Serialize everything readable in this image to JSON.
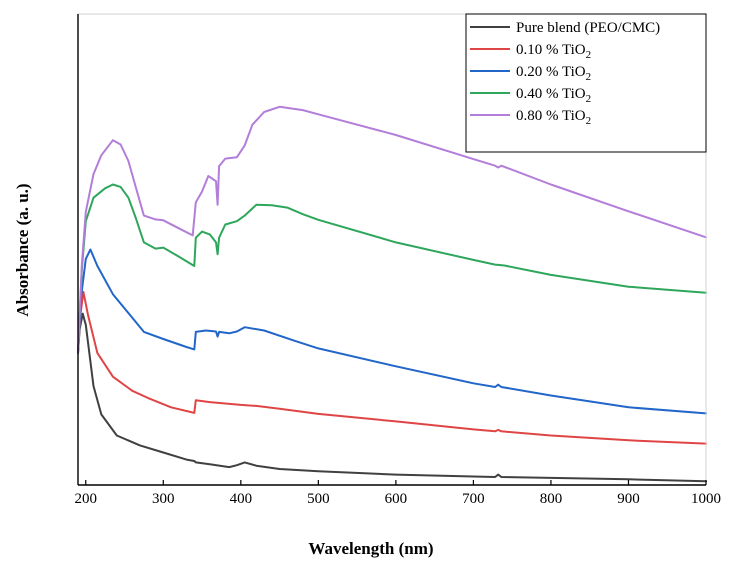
{
  "chart_data": {
    "type": "line",
    "title": "",
    "xlabel": "Wavelength (nm)",
    "ylabel": "Absorbance (a. u.)",
    "xlim": [
      190,
      1000
    ],
    "ylim": [
      0,
      100
    ],
    "x_ticks": [
      200,
      300,
      400,
      500,
      600,
      700,
      800,
      900,
      1000
    ],
    "y_tick_labels_shown": false,
    "grid": false,
    "legend_position": "top-right",
    "series": [
      {
        "name": "Pure blend (PEO/CMC)",
        "legend_label": "Pure blend (PEO/CMC)",
        "color": "#404040",
        "points": [
          [
            190,
            28
          ],
          [
            192,
            33
          ],
          [
            196,
            36.4
          ],
          [
            200,
            34
          ],
          [
            210,
            21
          ],
          [
            220,
            15
          ],
          [
            240,
            10.5
          ],
          [
            270,
            8.4
          ],
          [
            300,
            6.9
          ],
          [
            330,
            5.4
          ],
          [
            340,
            5.1
          ],
          [
            342,
            4.8
          ],
          [
            360,
            4.4
          ],
          [
            385,
            3.8
          ],
          [
            395,
            4.2
          ],
          [
            405,
            4.8
          ],
          [
            420,
            4.1
          ],
          [
            450,
            3.4
          ],
          [
            500,
            2.9
          ],
          [
            600,
            2.2
          ],
          [
            700,
            1.8
          ],
          [
            728,
            1.7
          ],
          [
            732,
            2.2
          ],
          [
            736,
            1.7
          ],
          [
            800,
            1.5
          ],
          [
            900,
            1.2
          ],
          [
            1000,
            0.8
          ]
        ]
      },
      {
        "name": "0.10 % TiO2",
        "legend_label": "0.10 % TiO",
        "legend_sub": "2",
        "color": "#e04545",
        "points": [
          [
            190,
            28
          ],
          [
            193,
            36
          ],
          [
            197,
            41
          ],
          [
            203,
            36
          ],
          [
            215,
            28
          ],
          [
            235,
            23
          ],
          [
            260,
            20
          ],
          [
            280,
            18.5
          ],
          [
            310,
            16.5
          ],
          [
            340,
            15.3
          ],
          [
            342,
            18
          ],
          [
            360,
            17.6
          ],
          [
            380,
            17.3
          ],
          [
            400,
            17
          ],
          [
            420,
            16.8
          ],
          [
            450,
            16.2
          ],
          [
            500,
            15.1
          ],
          [
            600,
            13.5
          ],
          [
            700,
            11.8
          ],
          [
            728,
            11.4
          ],
          [
            732,
            11.7
          ],
          [
            736,
            11.4
          ],
          [
            800,
            10.5
          ],
          [
            900,
            9.5
          ],
          [
            1000,
            8.8
          ]
        ]
      },
      {
        "name": "0.20 % TiO2",
        "legend_label": "0.20 % TiO",
        "legend_sub": "2",
        "color": "#2166c8",
        "points": [
          [
            190,
            28
          ],
          [
            194,
            40
          ],
          [
            200,
            48
          ],
          [
            206,
            50
          ],
          [
            215,
            46.5
          ],
          [
            235,
            40.5
          ],
          [
            260,
            35.5
          ],
          [
            275,
            32.5
          ],
          [
            300,
            31
          ],
          [
            330,
            29.3
          ],
          [
            340,
            28.8
          ],
          [
            342,
            32.5
          ],
          [
            355,
            32.8
          ],
          [
            368,
            32.6
          ],
          [
            370,
            31.5
          ],
          [
            372,
            32.5
          ],
          [
            385,
            32.2
          ],
          [
            395,
            32.6
          ],
          [
            405,
            33.5
          ],
          [
            430,
            32.8
          ],
          [
            470,
            30.6
          ],
          [
            500,
            29
          ],
          [
            600,
            25.2
          ],
          [
            700,
            21.6
          ],
          [
            728,
            20.8
          ],
          [
            732,
            21.3
          ],
          [
            736,
            20.8
          ],
          [
            800,
            19
          ],
          [
            900,
            16.5
          ],
          [
            1000,
            15.2
          ]
        ]
      },
      {
        "name": "0.40 % TiO2",
        "legend_label": "0.40 % TiO",
        "legend_sub": "2",
        "color": "#2ea65b",
        "points": [
          [
            190,
            28
          ],
          [
            195,
            46
          ],
          [
            200,
            56
          ],
          [
            210,
            61
          ],
          [
            225,
            63
          ],
          [
            235,
            63.8
          ],
          [
            245,
            63.3
          ],
          [
            255,
            61
          ],
          [
            265,
            56.5
          ],
          [
            275,
            51.5
          ],
          [
            290,
            50.2
          ],
          [
            300,
            50.4
          ],
          [
            320,
            48.5
          ],
          [
            340,
            46.5
          ],
          [
            342,
            52.5
          ],
          [
            350,
            53.8
          ],
          [
            360,
            53.2
          ],
          [
            368,
            51.5
          ],
          [
            370,
            49
          ],
          [
            372,
            52.5
          ],
          [
            380,
            55.3
          ],
          [
            395,
            56
          ],
          [
            405,
            57.2
          ],
          [
            420,
            59.5
          ],
          [
            440,
            59.4
          ],
          [
            460,
            58.9
          ],
          [
            480,
            57.5
          ],
          [
            500,
            56.3
          ],
          [
            600,
            51.5
          ],
          [
            700,
            47.8
          ],
          [
            728,
            46.8
          ],
          [
            740,
            46.6
          ],
          [
            800,
            44.6
          ],
          [
            900,
            42.1
          ],
          [
            1000,
            40.8
          ]
        ]
      },
      {
        "name": "0.80 % TiO2",
        "legend_label": "0.80 % TiO",
        "legend_sub": "2",
        "color": "#b37ed9",
        "points": [
          [
            190,
            28
          ],
          [
            195,
            47
          ],
          [
            200,
            58
          ],
          [
            210,
            66
          ],
          [
            220,
            70
          ],
          [
            235,
            73.2
          ],
          [
            245,
            72.3
          ],
          [
            255,
            68.8
          ],
          [
            265,
            63
          ],
          [
            275,
            57.2
          ],
          [
            290,
            56.4
          ],
          [
            300,
            56.2
          ],
          [
            320,
            54.5
          ],
          [
            338,
            53
          ],
          [
            342,
            60
          ],
          [
            350,
            62.3
          ],
          [
            358,
            65.6
          ],
          [
            368,
            64.5
          ],
          [
            370,
            59.5
          ],
          [
            372,
            67.7
          ],
          [
            380,
            69.3
          ],
          [
            395,
            69.6
          ],
          [
            405,
            72.1
          ],
          [
            415,
            76.5
          ],
          [
            430,
            79.2
          ],
          [
            450,
            80.3
          ],
          [
            480,
            79.6
          ],
          [
            500,
            78.7
          ],
          [
            600,
            74.3
          ],
          [
            700,
            69.2
          ],
          [
            728,
            67.8
          ],
          [
            732,
            67.4
          ],
          [
            736,
            67.8
          ],
          [
            800,
            63.8
          ],
          [
            900,
            58.1
          ],
          [
            1000,
            52.6
          ]
        ]
      }
    ]
  }
}
